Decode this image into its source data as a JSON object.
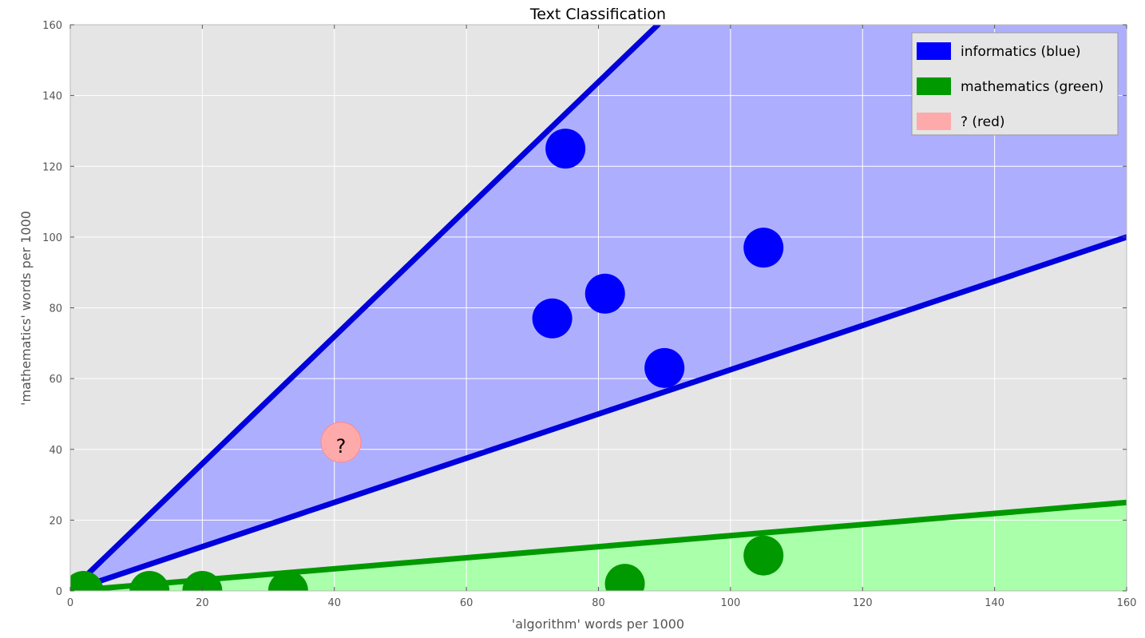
{
  "chart_data": {
    "type": "scatter",
    "title": "Text Classification",
    "xlabel": "'algorithm' words per 1000",
    "ylabel": "'mathematics' words per 1000",
    "xlim": [
      0,
      160
    ],
    "ylim": [
      0,
      160
    ],
    "xticks": [
      "0",
      "20",
      "40",
      "60",
      "80",
      "100",
      "120",
      "140",
      "160"
    ],
    "yticks": [
      "0",
      "20",
      "40",
      "60",
      "80",
      "100",
      "120",
      "140",
      "160"
    ],
    "grid": true,
    "legend_position": "top-right",
    "colors": {
      "plot_background": "#e5e5e5",
      "grid": "#ffffff",
      "informatics_point": "#0000ff",
      "informatics_line": "#0000dd",
      "informatics_region": "#aeaeff",
      "mathematics_point": "#009900",
      "mathematics_line": "#009900",
      "mathematics_region": "#aaffaa",
      "query_point": "#ffaaaa"
    },
    "boundary_lines": [
      {
        "series": "informatics",
        "points": [
          [
            0,
            0
          ],
          [
            89,
            160
          ]
        ]
      },
      {
        "series": "informatics",
        "points": [
          [
            0,
            0
          ],
          [
            160,
            100
          ]
        ]
      },
      {
        "series": "mathematics",
        "points": [
          [
            0,
            0
          ],
          [
            160,
            25
          ]
        ]
      }
    ],
    "series": [
      {
        "name": "informatics (blue)",
        "points": [
          [
            75,
            125
          ],
          [
            105,
            97
          ],
          [
            81,
            84
          ],
          [
            73,
            77
          ],
          [
            90,
            63
          ]
        ]
      },
      {
        "name": "mathematics (green)",
        "points": [
          [
            2,
            0
          ],
          [
            12,
            0
          ],
          [
            20,
            0
          ],
          [
            33,
            0
          ],
          [
            84,
            2
          ],
          [
            105,
            10
          ]
        ]
      },
      {
        "name": "? (red)",
        "points": [
          [
            41,
            42
          ]
        ],
        "annotations": [
          "?"
        ]
      }
    ]
  }
}
